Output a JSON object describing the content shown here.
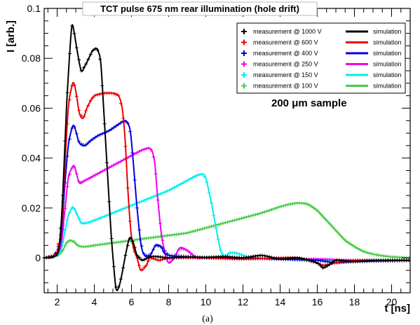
{
  "chart_data": {
    "type": "line",
    "title": "TCT pulse 675 nm rear illumination (hole drift)",
    "xlabel": "t [ns]",
    "ylabel": "I [arb.]",
    "xlim": [
      1.3,
      21
    ],
    "ylim": [
      -0.014,
      0.1
    ],
    "xticks": [
      2,
      4,
      6,
      8,
      10,
      12,
      14,
      16,
      18,
      20
    ],
    "xtick_labels": [
      "2",
      "4",
      "6",
      "8",
      "10",
      "12",
      "14",
      "16",
      "18",
      "20"
    ],
    "yticks": [
      0,
      0.02,
      0.04,
      0.06,
      0.08,
      0.1
    ],
    "ytick_labels": [
      "0",
      "0.02",
      "0.04",
      "0.06",
      "0.08",
      "0.1"
    ],
    "grid": false,
    "legend_position": "top-right",
    "annotation": "200 μm sample",
    "caption": "(a)",
    "series": [
      {
        "name": "1000 V",
        "measurement_label": "measurement @ 1000 V",
        "simulation_label": "simulation",
        "color": "#000000",
        "x": [
          1.3,
          1.8,
          2.1,
          2.3,
          2.5,
          2.7,
          2.8,
          2.9,
          3.1,
          3.3,
          3.5,
          3.7,
          3.9,
          4.1,
          4.2,
          4.35,
          4.5,
          4.7,
          4.9,
          5.1,
          5.2,
          5.35,
          5.5,
          5.7,
          5.9,
          6.1,
          6.3,
          6.6,
          7.0,
          7.5,
          8.0,
          9,
          10,
          11,
          12,
          13,
          14,
          15,
          16,
          16.3,
          16.6,
          17,
          18,
          19,
          21
        ],
        "y": [
          0,
          0.0005,
          0.004,
          0.025,
          0.06,
          0.085,
          0.093,
          0.091,
          0.082,
          0.075,
          0.077,
          0.08,
          0.083,
          0.084,
          0.083,
          0.078,
          0.06,
          0.035,
          0.01,
          -0.008,
          -0.013,
          -0.011,
          -0.006,
          0.002,
          0.008,
          0.006,
          0.001,
          -0.001,
          0.0005,
          0.0004,
          0.0,
          0.0004,
          0.0002,
          0.0005,
          0.0,
          0.001,
          -0.0005,
          0.0,
          -0.002,
          -0.004,
          -0.003,
          -0.001,
          -0.0015,
          -0.001,
          -0.001
        ]
      },
      {
        "name": "600 V",
        "measurement_label": "measurement @ 600 V",
        "simulation_label": "simulation",
        "color": "#ee0000",
        "x": [
          1.3,
          1.9,
          2.2,
          2.4,
          2.6,
          2.8,
          2.9,
          3.0,
          3.2,
          3.4,
          3.6,
          3.8,
          4.0,
          4.5,
          5.0,
          5.3,
          5.5,
          5.65,
          5.8,
          5.95,
          6.1,
          6.3,
          6.5,
          6.8,
          7.0,
          7.5,
          8,
          10,
          12,
          14,
          15,
          16,
          16.3,
          17,
          18,
          21
        ],
        "y": [
          0,
          0.001,
          0.01,
          0.035,
          0.06,
          0.069,
          0.07,
          0.067,
          0.058,
          0.056,
          0.06,
          0.063,
          0.065,
          0.066,
          0.066,
          0.065,
          0.06,
          0.048,
          0.028,
          0.012,
          0.004,
          0.0,
          -0.005,
          -0.003,
          0.0,
          -0.001,
          0.0,
          0.0,
          -0.0005,
          0.0,
          0.0,
          -0.002,
          -0.003,
          -0.002,
          -0.001,
          -0.001
        ]
      },
      {
        "name": "400 V",
        "measurement_label": "measurement @ 400 V",
        "simulation_label": "simulation",
        "color": "#0000dd",
        "x": [
          1.3,
          1.9,
          2.2,
          2.4,
          2.6,
          2.8,
          2.9,
          3.0,
          3.2,
          3.5,
          3.8,
          4.2,
          4.8,
          5.2,
          5.6,
          5.8,
          5.95,
          6.1,
          6.3,
          6.5,
          6.7,
          7.0,
          7.3,
          7.6,
          8,
          10,
          12,
          14,
          16,
          17,
          18,
          21
        ],
        "y": [
          0,
          0.001,
          0.008,
          0.028,
          0.045,
          0.052,
          0.053,
          0.051,
          0.046,
          0.045,
          0.047,
          0.049,
          0.051,
          0.053,
          0.055,
          0.054,
          0.05,
          0.038,
          0.02,
          0.006,
          0.001,
          0.001,
          0.005,
          0.0045,
          0.001,
          0.0,
          0.0,
          -0.0005,
          -0.001,
          -0.002,
          -0.0015,
          -0.001
        ]
      },
      {
        "name": "250 V",
        "measurement_label": "measurement @ 250 V",
        "simulation_label": "simulation",
        "color": "#ee00ee",
        "x": [
          1.3,
          1.9,
          2.2,
          2.4,
          2.6,
          2.8,
          2.9,
          3.0,
          3.2,
          3.5,
          4.0,
          4.5,
          5.0,
          5.5,
          6.0,
          6.5,
          6.9,
          7.1,
          7.25,
          7.4,
          7.6,
          7.8,
          8.0,
          8.3,
          8.6,
          9.0,
          9.5,
          10,
          12,
          14,
          16,
          18,
          21
        ],
        "y": [
          0,
          0.001,
          0.005,
          0.018,
          0.032,
          0.036,
          0.037,
          0.035,
          0.03,
          0.031,
          0.033,
          0.035,
          0.037,
          0.039,
          0.041,
          0.043,
          0.044,
          0.043,
          0.038,
          0.025,
          0.01,
          0.002,
          -0.002,
          0.0,
          0.004,
          0.003,
          0.0,
          0.0,
          0.0,
          -0.0005,
          -0.0005,
          -0.001,
          -0.001
        ]
      },
      {
        "name": "150 V",
        "measurement_label": "measurement @ 150 V",
        "simulation_label": "simulation",
        "color": "#00eeee",
        "x": [
          1.3,
          1.9,
          2.2,
          2.4,
          2.6,
          2.8,
          2.9,
          3.1,
          3.3,
          3.6,
          4,
          5,
          6,
          7,
          8,
          9,
          9.5,
          9.8,
          10.0,
          10.3,
          10.6,
          10.8,
          11.0,
          11.3,
          11.6,
          12.0,
          12.5,
          14,
          16,
          18,
          21
        ],
        "y": [
          0,
          0.0005,
          0.003,
          0.01,
          0.017,
          0.02,
          0.02,
          0.017,
          0.014,
          0.014,
          0.015,
          0.018,
          0.021,
          0.024,
          0.027,
          0.031,
          0.033,
          0.0335,
          0.032,
          0.022,
          0.01,
          0.003,
          0.0005,
          0.002,
          0.002,
          0.001,
          0.0,
          -0.0005,
          -0.001,
          -0.001,
          -0.001
        ]
      },
      {
        "name": "100 V",
        "measurement_label": "measurement @ 100 V",
        "simulation_label": "simulation",
        "color": "#44cc44",
        "x": [
          1.3,
          2.0,
          2.3,
          2.5,
          2.7,
          2.9,
          3.1,
          3.3,
          3.6,
          4,
          5,
          6,
          7,
          8,
          9,
          10,
          11,
          12,
          13,
          14,
          14.5,
          15.0,
          15.5,
          16,
          16.5,
          17,
          17.5,
          18,
          18.5,
          19,
          19.5,
          20,
          21
        ],
        "y": [
          0,
          0.0008,
          0.003,
          0.006,
          0.007,
          0.0065,
          0.005,
          0.0045,
          0.0045,
          0.005,
          0.006,
          0.007,
          0.008,
          0.009,
          0.01,
          0.012,
          0.014,
          0.016,
          0.018,
          0.0205,
          0.0215,
          0.022,
          0.0215,
          0.019,
          0.015,
          0.011,
          0.007,
          0.0045,
          0.0025,
          0.0015,
          0.0008,
          0.0004,
          0.0
        ]
      }
    ]
  }
}
